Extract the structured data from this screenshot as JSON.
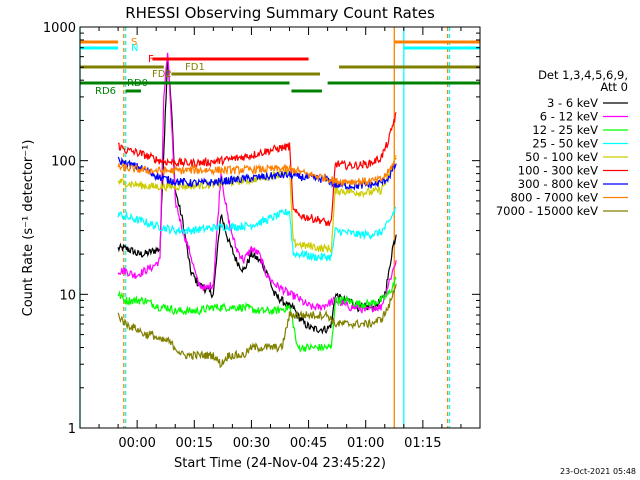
{
  "chart_data": {
    "type": "line",
    "title": "RHESSI Observing Summary Count Rates",
    "xlabel": "Start Time (24-Nov-04 23:45:22)",
    "ylabel": "Count Rate (s⁻¹ detector⁻¹)",
    "y_scale": "log",
    "ylim": [
      1,
      1000
    ],
    "xlim_minutes": [
      -15,
      90
    ],
    "y_ticks": [
      {
        "value": 1,
        "label": "1"
      },
      {
        "value": 10,
        "label": "10"
      },
      {
        "value": 100,
        "label": "100"
      },
      {
        "value": 1000,
        "label": "1000"
      }
    ],
    "x_ticks": [
      {
        "value": 0,
        "label": "00:00"
      },
      {
        "value": 15,
        "label": "00:15"
      },
      {
        "value": 30,
        "label": "00:30"
      },
      {
        "value": 45,
        "label": "00:45"
      },
      {
        "value": 60,
        "label": "01:00"
      },
      {
        "value": 75,
        "label": "01:15"
      }
    ],
    "legend": {
      "placement": "right",
      "header": [
        "Det 1,3,4,5,6,9,",
        "Att 0"
      ]
    },
    "series": [
      {
        "name": "3 - 6 keV",
        "color": "#000000",
        "x": [
          -5,
          -3,
          -1,
          0,
          2,
          4,
          6,
          7,
          8,
          9,
          10,
          12,
          14,
          16,
          20,
          22,
          24,
          26,
          28,
          30,
          32,
          34,
          36,
          38,
          40,
          41,
          42,
          44,
          46,
          48,
          50,
          51,
          52,
          54,
          56,
          58,
          60,
          62,
          64,
          65,
          66,
          67,
          68
        ],
        "y": [
          22,
          22,
          21,
          20,
          20,
          21,
          22,
          120,
          600,
          250,
          60,
          35,
          15,
          12,
          10,
          40,
          25,
          18,
          15,
          20,
          18,
          15,
          10,
          9,
          8,
          8,
          7,
          6,
          5.5,
          5.5,
          5.5,
          6,
          10,
          9,
          9,
          8,
          8,
          8,
          9,
          10,
          14,
          22,
          28
        ]
      },
      {
        "name": "6 - 12 keV",
        "color": "#ff00ff",
        "x": [
          -5,
          -3,
          -1,
          0,
          2,
          4,
          6,
          7,
          8,
          9,
          10,
          12,
          14,
          16,
          18,
          20,
          22,
          24,
          26,
          28,
          30,
          32,
          34,
          36,
          38,
          40,
          42,
          44,
          46,
          48,
          50,
          52,
          54,
          56,
          58,
          60,
          62,
          64,
          66,
          68
        ],
        "y": [
          15,
          15,
          14,
          14,
          15,
          16,
          18,
          300,
          650,
          200,
          50,
          30,
          20,
          12,
          11,
          12,
          80,
          35,
          22,
          18,
          22,
          20,
          14,
          12,
          11,
          10,
          9.5,
          8.5,
          8,
          8,
          8.5,
          9,
          8.5,
          8,
          8,
          7.5,
          8,
          8,
          12,
          18
        ]
      },
      {
        "name": "12 - 25 keV",
        "color": "#00ff00",
        "x": [
          -5,
          -3,
          0,
          2,
          4,
          6,
          8,
          10,
          12,
          16,
          20,
          24,
          28,
          32,
          36,
          40,
          41,
          42,
          44,
          46,
          48,
          50,
          51,
          52,
          55,
          58,
          61,
          64,
          66,
          68
        ],
        "y": [
          10,
          9,
          9,
          9,
          8.5,
          8,
          8,
          7.5,
          7.5,
          7.5,
          8,
          8,
          8,
          7.5,
          7.5,
          8,
          6,
          4,
          4,
          4,
          4,
          4,
          4,
          9,
          9,
          8.5,
          8.5,
          9,
          10,
          13
        ]
      },
      {
        "name": "25 - 50 keV",
        "color": "#00ffff",
        "x": [
          -5,
          -3,
          0,
          2,
          4,
          6,
          8,
          10,
          14,
          18,
          22,
          26,
          30,
          34,
          38,
          40,
          41,
          42,
          44,
          46,
          48,
          50,
          51,
          52,
          55,
          58,
          61,
          64,
          66,
          68
        ],
        "y": [
          40,
          38,
          36,
          35,
          33,
          32,
          31,
          30,
          30,
          31,
          32,
          32,
          33,
          36,
          40,
          42,
          20,
          20,
          20,
          19,
          19,
          19,
          19,
          30,
          29,
          28,
          28,
          29,
          34,
          45
        ]
      },
      {
        "name": "50 - 100 keV",
        "color": "#cccc00",
        "x": [
          -5,
          -3,
          0,
          2,
          4,
          6,
          8,
          10,
          14,
          18,
          22,
          26,
          30,
          34,
          38,
          40,
          41,
          42,
          44,
          46,
          48,
          50,
          51,
          52,
          55,
          58,
          61,
          64,
          66,
          68
        ],
        "y": [
          70,
          68,
          66,
          65,
          64,
          64,
          64,
          64,
          65,
          66,
          68,
          70,
          72,
          76,
          80,
          82,
          24,
          24,
          23,
          23,
          22,
          22,
          22,
          60,
          59,
          58,
          58,
          60,
          75,
          110
        ]
      },
      {
        "name": "100 - 300 keV",
        "color": "#ff0000",
        "x": [
          -5,
          -3,
          0,
          2,
          4,
          6,
          8,
          10,
          14,
          18,
          22,
          26,
          30,
          34,
          38,
          40,
          41,
          42,
          44,
          46,
          48,
          50,
          51,
          52,
          55,
          58,
          61,
          64,
          66,
          68
        ],
        "y": [
          130,
          120,
          115,
          110,
          105,
          100,
          98,
          97,
          96,
          97,
          100,
          104,
          110,
          118,
          125,
          128,
          42,
          40,
          38,
          37,
          36,
          34,
          34,
          95,
          92,
          92,
          95,
          105,
          140,
          230
        ]
      },
      {
        "name": "300 - 800 keV",
        "color": "#0000ff",
        "x": [
          -5,
          -3,
          0,
          2,
          4,
          6,
          8,
          10,
          14,
          18,
          22,
          26,
          30,
          34,
          38,
          40,
          42,
          44,
          46,
          48,
          50,
          52,
          55,
          58,
          61,
          64,
          66,
          68
        ],
        "y": [
          100,
          95,
          90,
          85,
          80,
          75,
          72,
          70,
          68,
          68,
          70,
          72,
          74,
          76,
          78,
          78,
          76,
          75,
          74,
          73,
          72,
          66,
          65,
          65,
          66,
          68,
          75,
          95
        ]
      },
      {
        "name": "800 - 7000 keV",
        "color": "#ff8000",
        "x": [
          -5,
          -3,
          0,
          2,
          4,
          6,
          8,
          10,
          14,
          18,
          22,
          26,
          30,
          34,
          38,
          40,
          42,
          44,
          46,
          48,
          50,
          52,
          55,
          58,
          61,
          64,
          66,
          68
        ],
        "y": [
          90,
          88,
          86,
          85,
          84,
          84,
          84,
          84,
          85,
          85,
          85,
          85,
          86,
          86,
          87,
          86,
          84,
          80,
          78,
          76,
          74,
          70,
          70,
          70,
          70,
          72,
          82,
          105
        ]
      },
      {
        "name": "7000 - 15000 keV",
        "color": "#808000",
        "x": [
          -5,
          -3,
          0,
          2,
          4,
          6,
          8,
          10,
          12,
          14,
          16,
          18,
          20,
          22,
          24,
          26,
          28,
          30,
          32,
          34,
          36,
          38,
          40,
          42,
          44,
          46,
          48,
          50,
          52,
          55,
          58,
          61,
          64,
          66,
          68
        ],
        "y": [
          7,
          6,
          5.5,
          5,
          5,
          4.5,
          4.5,
          4,
          3.5,
          3.5,
          3.5,
          3.5,
          3.5,
          3,
          3.5,
          3.5,
          3.5,
          4,
          4,
          4,
          4,
          4,
          7,
          7,
          7,
          7,
          7,
          7,
          6,
          6,
          6,
          6,
          6.5,
          8,
          12
        ]
      }
    ],
    "flag_bars": [
      {
        "label": "S",
        "color": "#ff8000",
        "segments": [
          [
            -15,
            -5
          ],
          [
            67.5,
            90
          ]
        ]
      },
      {
        "label": "N",
        "color": "#00ffff",
        "segments": [
          [
            -15,
            -5
          ],
          [
            70,
            90
          ]
        ]
      },
      {
        "label": "F",
        "color": "#ff0000",
        "segments": [
          [
            4,
            45
          ]
        ]
      },
      {
        "label": "FD1",
        "color": "#808000",
        "segments": [
          [
            -15,
            7
          ],
          [
            53,
            90
          ]
        ]
      },
      {
        "label": "FD2",
        "color": "#808000",
        "segments": [
          [
            9,
            48
          ]
        ]
      },
      {
        "label": "RD0",
        "color": "#008000",
        "segments": [
          [
            -15,
            40
          ],
          [
            50,
            90
          ]
        ]
      },
      {
        "label": "RD6",
        "color": "#008000",
        "segments": [
          [
            -3,
            1
          ],
          [
            40.5,
            48.5
          ]
        ]
      }
    ],
    "vertical_markers": [
      {
        "minutes": -15,
        "color": "#00ffff",
        "style": "solid"
      },
      {
        "minutes": -3.5,
        "color": "#ff8000",
        "style": "dashed"
      },
      {
        "minutes": -3,
        "color": "#00ffff",
        "style": "dashed"
      },
      {
        "minutes": 67.5,
        "color": "#ff8000",
        "style": "solid"
      },
      {
        "minutes": 70,
        "color": "#00ffff",
        "style": "solid"
      },
      {
        "minutes": 81.5,
        "color": "#ff8000",
        "style": "dashed"
      },
      {
        "minutes": 82,
        "color": "#00ffff",
        "style": "dashed"
      }
    ],
    "footer": "23-Oct-2021 05:48"
  }
}
